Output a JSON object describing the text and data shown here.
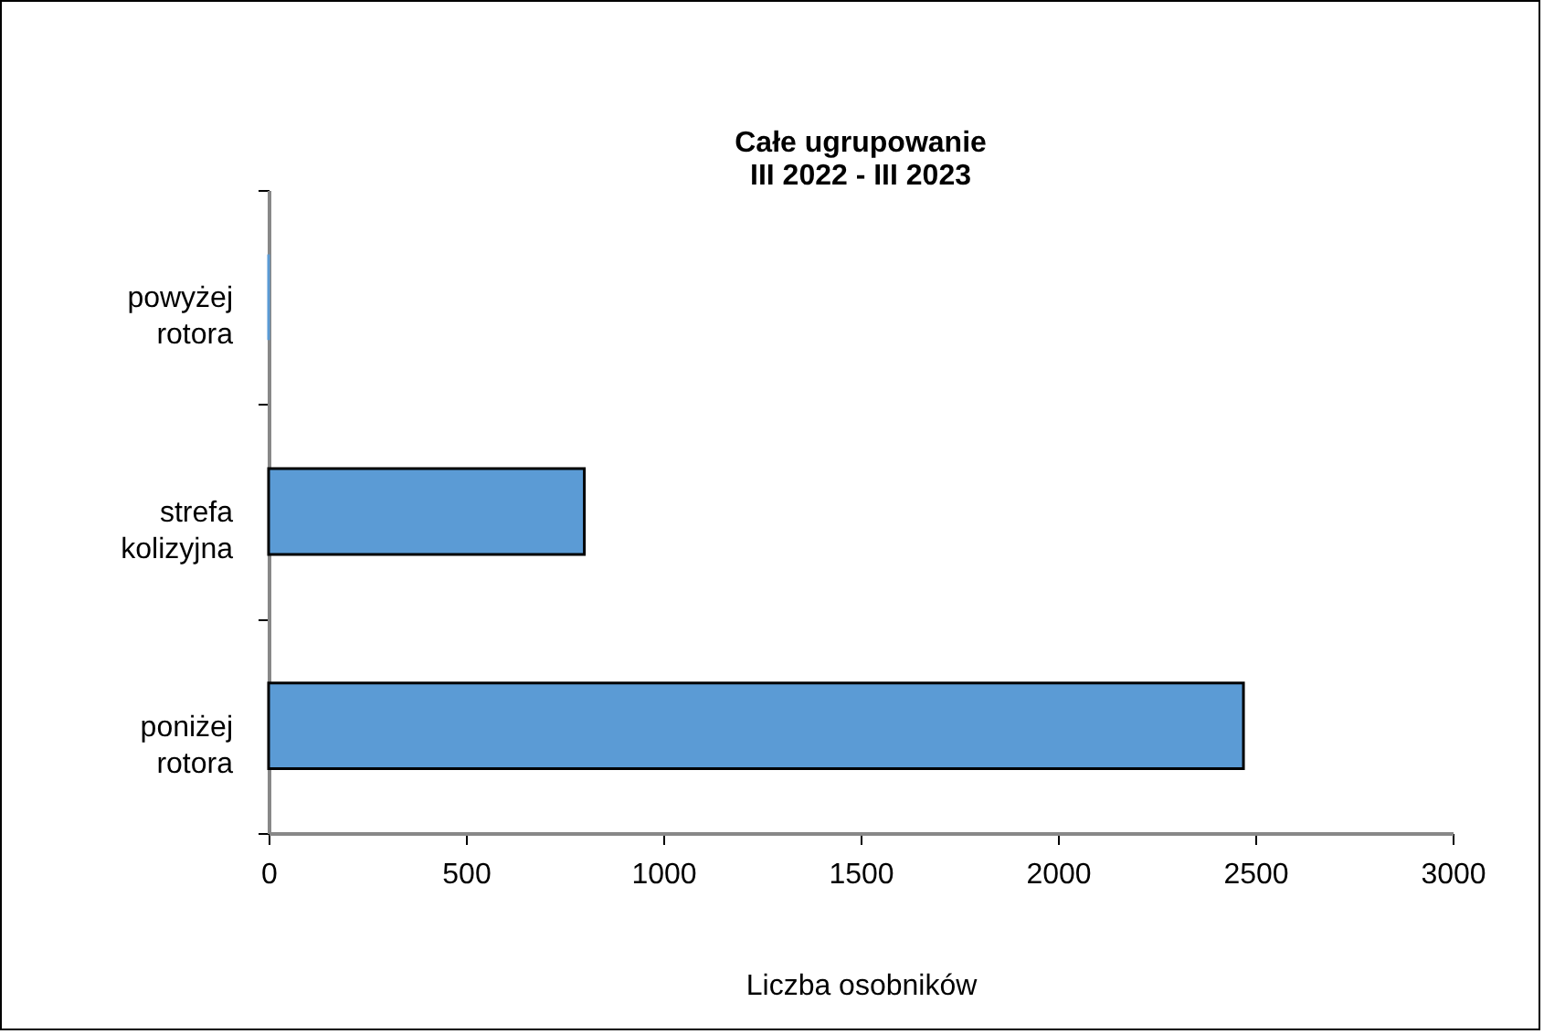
{
  "chart_data": {
    "type": "bar",
    "orientation": "horizontal",
    "title": "Całe ugrupowanie",
    "subtitle": "III 2022 - III 2023",
    "xlabel": "Liczba osobników",
    "categories": [
      "powyżej rotora",
      "strefa kolizyjna",
      "poniżej rotora"
    ],
    "values": [
      0,
      800,
      2470
    ],
    "color": "#5b9bd5",
    "xlim": [
      0,
      3000
    ],
    "xticks": [
      0,
      500,
      1000,
      1500,
      2000,
      2500,
      3000
    ],
    "grid": false
  }
}
